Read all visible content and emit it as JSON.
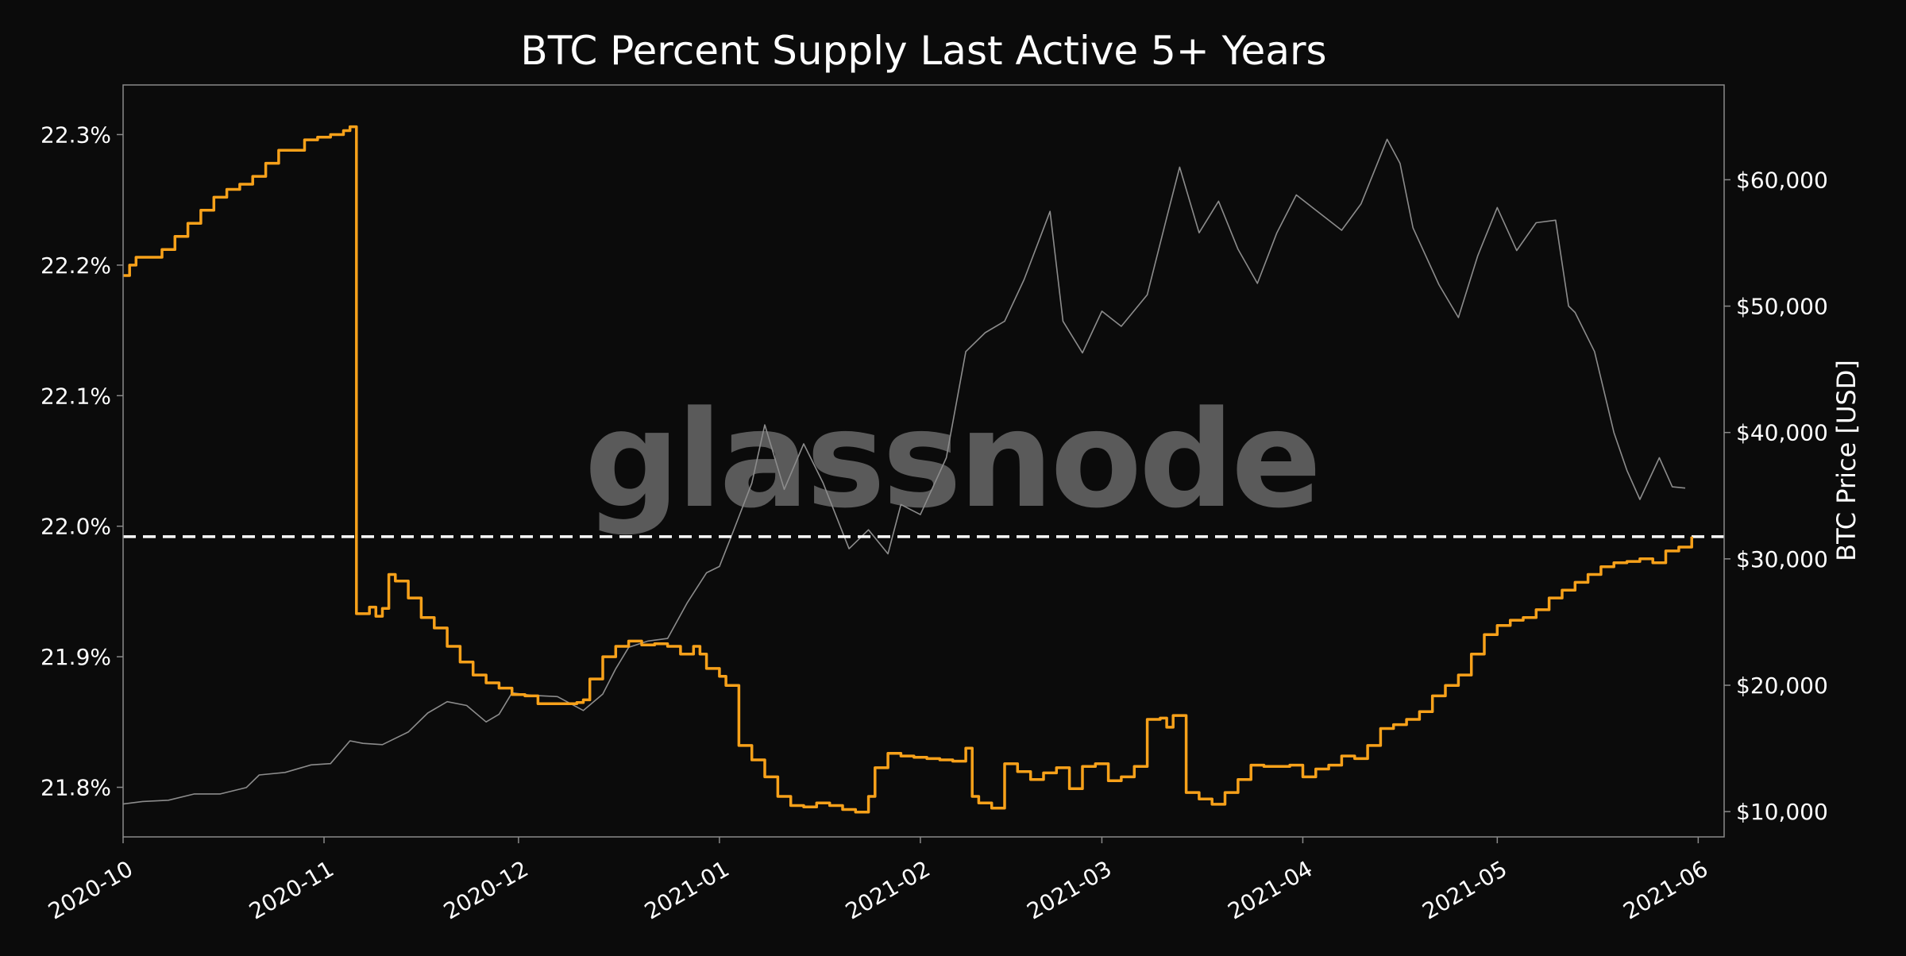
{
  "chart_data": {
    "type": "line",
    "title": "BTC Percent Supply Last Active 5+ Years",
    "watermark": "glassnode",
    "xlabel": "",
    "ylabel_left": "",
    "ylabel_right": "BTC Price [USD]",
    "x_ticks": [
      "2020-10",
      "2020-11",
      "2020-12",
      "2021-01",
      "2021-02",
      "2021-03",
      "2021-04",
      "2021-05",
      "2021-06"
    ],
    "y_left_ticks": [
      {
        "value": 21.8,
        "label": "21.8%"
      },
      {
        "value": 21.9,
        "label": "21.9%"
      },
      {
        "value": 22.0,
        "label": "22.0%"
      },
      {
        "value": 22.1,
        "label": "22.1%"
      },
      {
        "value": 22.2,
        "label": "22.2%"
      },
      {
        "value": 22.3,
        "label": "22.3%"
      }
    ],
    "y_right_ticks": [
      {
        "value": 10000,
        "label": "$10,000"
      },
      {
        "value": 20000,
        "label": "$20,000"
      },
      {
        "value": 30000,
        "label": "$30,000"
      },
      {
        "value": 40000,
        "label": "$40,000"
      },
      {
        "value": 50000,
        "label": "$50,000"
      },
      {
        "value": 60000,
        "label": "$60,000"
      }
    ],
    "x_range": [
      "2020-10-01",
      "2021-06-05"
    ],
    "ylim_left": [
      21.762,
      22.338
    ],
    "ylim_right": [
      8000,
      67500
    ],
    "grid": false,
    "reference_line": {
      "value": 21.992,
      "axis": "left",
      "style": "dashed",
      "color": "#ffffff"
    },
    "colors": {
      "background": "#0b0b0b",
      "plot_border": "#8a8a8a",
      "text": "#ffffff",
      "supply_series": "#f7a11a",
      "price_series": "#8c8c8c",
      "watermark": "#5a5a5a"
    },
    "series": [
      {
        "axis": "left",
        "color": "#f7a11a",
        "x": [
          "2020-10-01",
          "2020-10-02",
          "2020-10-03",
          "2020-10-05",
          "2020-10-07",
          "2020-10-09",
          "2020-10-11",
          "2020-10-13",
          "2020-10-15",
          "2020-10-17",
          "2020-10-19",
          "2020-10-21",
          "2020-10-23",
          "2020-10-25",
          "2020-10-27",
          "2020-10-29",
          "2020-10-31",
          "2020-11-02",
          "2020-11-04",
          "2020-11-05",
          "2020-11-06",
          "2020-11-08",
          "2020-11-09",
          "2020-11-10",
          "2020-11-11",
          "2020-11-12",
          "2020-11-14",
          "2020-11-16",
          "2020-11-18",
          "2020-11-20",
          "2020-11-22",
          "2020-11-24",
          "2020-11-26",
          "2020-11-28",
          "2020-11-30",
          "2020-12-02",
          "2020-12-04",
          "2020-12-06",
          "2020-12-08",
          "2020-12-10",
          "2020-12-11",
          "2020-12-12",
          "2020-12-14",
          "2020-12-16",
          "2020-12-18",
          "2020-12-20",
          "2020-12-22",
          "2020-12-24",
          "2020-12-26",
          "2020-12-28",
          "2020-12-29",
          "2020-12-30",
          "2021-01-01",
          "2021-01-02",
          "2021-01-04",
          "2021-01-06",
          "2021-01-08",
          "2021-01-10",
          "2021-01-12",
          "2021-01-14",
          "2021-01-16",
          "2021-01-18",
          "2021-01-20",
          "2021-01-22",
          "2021-01-24",
          "2021-01-25",
          "2021-01-27",
          "2021-01-29",
          "2021-01-31",
          "2021-02-02",
          "2021-02-04",
          "2021-02-06",
          "2021-02-08",
          "2021-02-09",
          "2021-02-10",
          "2021-02-12",
          "2021-02-14",
          "2021-02-16",
          "2021-02-18",
          "2021-02-20",
          "2021-02-22",
          "2021-02-24",
          "2021-02-26",
          "2021-02-28",
          "2021-03-02",
          "2021-03-04",
          "2021-03-06",
          "2021-03-08",
          "2021-03-10",
          "2021-03-11",
          "2021-03-12",
          "2021-03-14",
          "2021-03-16",
          "2021-03-18",
          "2021-03-20",
          "2021-03-22",
          "2021-03-24",
          "2021-03-26",
          "2021-03-28",
          "2021-03-30",
          "2021-04-01",
          "2021-04-03",
          "2021-04-05",
          "2021-04-07",
          "2021-04-09",
          "2021-04-11",
          "2021-04-13",
          "2021-04-15",
          "2021-04-17",
          "2021-04-19",
          "2021-04-21",
          "2021-04-23",
          "2021-04-25",
          "2021-04-27",
          "2021-04-29",
          "2021-05-01",
          "2021-05-03",
          "2021-05-05",
          "2021-05-07",
          "2021-05-09",
          "2021-05-11",
          "2021-05-13",
          "2021-05-15",
          "2021-05-17",
          "2021-05-19",
          "2021-05-21",
          "2021-05-23",
          "2021-05-25",
          "2021-05-27",
          "2021-05-29",
          "2021-05-31"
        ],
        "values": [
          22.192,
          22.2,
          22.206,
          22.206,
          22.212,
          22.222,
          22.232,
          22.242,
          22.252,
          22.258,
          22.262,
          22.268,
          22.278,
          22.288,
          22.288,
          22.296,
          22.298,
          22.3,
          22.303,
          22.306,
          21.933,
          21.938,
          21.931,
          21.937,
          21.963,
          21.958,
          21.945,
          21.93,
          21.922,
          21.908,
          21.896,
          21.886,
          21.88,
          21.876,
          21.871,
          21.87,
          21.864,
          21.864,
          21.864,
          21.865,
          21.867,
          21.883,
          21.9,
          21.908,
          21.912,
          21.909,
          21.91,
          21.908,
          21.902,
          21.908,
          21.902,
          21.891,
          21.885,
          21.878,
          21.832,
          21.821,
          21.808,
          21.793,
          21.786,
          21.785,
          21.788,
          21.786,
          21.783,
          21.781,
          21.793,
          21.815,
          21.826,
          21.824,
          21.823,
          21.822,
          21.821,
          21.82,
          21.83,
          21.793,
          21.788,
          21.784,
          21.818,
          21.812,
          21.806,
          21.811,
          21.815,
          21.799,
          21.816,
          21.818,
          21.805,
          21.808,
          21.816,
          21.852,
          21.853,
          21.846,
          21.855,
          21.796,
          21.791,
          21.787,
          21.796,
          21.806,
          21.817,
          21.816,
          21.816,
          21.817,
          21.808,
          21.814,
          21.817,
          21.824,
          21.822,
          21.832,
          21.845,
          21.848,
          21.852,
          21.858,
          21.87,
          21.878,
          21.886,
          21.902,
          21.917,
          21.924,
          21.928,
          21.93,
          21.936,
          21.945,
          21.951,
          21.957,
          21.963,
          21.969,
          21.972,
          21.973,
          21.975,
          21.972,
          21.981,
          21.984,
          21.992
        ]
      },
      {
        "axis": "right",
        "color": "#8c8c8c",
        "x": [
          "2020-10-01",
          "2020-10-04",
          "2020-10-08",
          "2020-10-12",
          "2020-10-16",
          "2020-10-20",
          "2020-10-22",
          "2020-10-26",
          "2020-10-30",
          "2020-11-02",
          "2020-11-05",
          "2020-11-07",
          "2020-11-10",
          "2020-11-14",
          "2020-11-17",
          "2020-11-20",
          "2020-11-23",
          "2020-11-26",
          "2020-11-28",
          "2020-11-30",
          "2020-12-03",
          "2020-12-07",
          "2020-12-11",
          "2020-12-14",
          "2020-12-16",
          "2020-12-18",
          "2020-12-21",
          "2020-12-24",
          "2020-12-27",
          "2020-12-30",
          "2021-01-01",
          "2021-01-03",
          "2021-01-06",
          "2021-01-08",
          "2021-01-11",
          "2021-01-14",
          "2021-01-17",
          "2021-01-21",
          "2021-01-24",
          "2021-01-27",
          "2021-01-29",
          "2021-02-01",
          "2021-02-05",
          "2021-02-08",
          "2021-02-11",
          "2021-02-14",
          "2021-02-17",
          "2021-02-21",
          "2021-02-23",
          "2021-02-26",
          "2021-03-01",
          "2021-03-04",
          "2021-03-08",
          "2021-03-11",
          "2021-03-13",
          "2021-03-16",
          "2021-03-19",
          "2021-03-22",
          "2021-03-25",
          "2021-03-28",
          "2021-03-31",
          "2021-04-03",
          "2021-04-07",
          "2021-04-10",
          "2021-04-14",
          "2021-04-16",
          "2021-04-18",
          "2021-04-22",
          "2021-04-25",
          "2021-04-28",
          "2021-05-01",
          "2021-05-04",
          "2021-05-07",
          "2021-05-10",
          "2021-05-12",
          "2021-05-13",
          "2021-05-16",
          "2021-05-19",
          "2021-05-21",
          "2021-05-23",
          "2021-05-26",
          "2021-05-28",
          "2021-05-30"
        ],
        "values": [
          10600,
          10800,
          10900,
          11400,
          11400,
          11900,
          12900,
          13100,
          13700,
          13800,
          15600,
          15400,
          15300,
          16300,
          17800,
          18700,
          18400,
          17100,
          17700,
          19400,
          19200,
          19100,
          18000,
          19300,
          21300,
          23000,
          23500,
          23700,
          26500,
          28900,
          29400,
          32000,
          36000,
          40600,
          35500,
          39100,
          36000,
          30800,
          32300,
          30400,
          34300,
          33500,
          38000,
          46400,
          47900,
          48800,
          52100,
          57500,
          48800,
          46300,
          49600,
          48400,
          50900,
          57000,
          61000,
          55800,
          58300,
          54500,
          51800,
          55800,
          58800,
          57600,
          56000,
          58100,
          63200,
          61300,
          56200,
          51700,
          49100,
          54000,
          57800,
          54400,
          56600,
          56800,
          50000,
          49500,
          46400,
          40000,
          37000,
          34700,
          38000,
          35700,
          35600
        ]
      }
    ]
  }
}
